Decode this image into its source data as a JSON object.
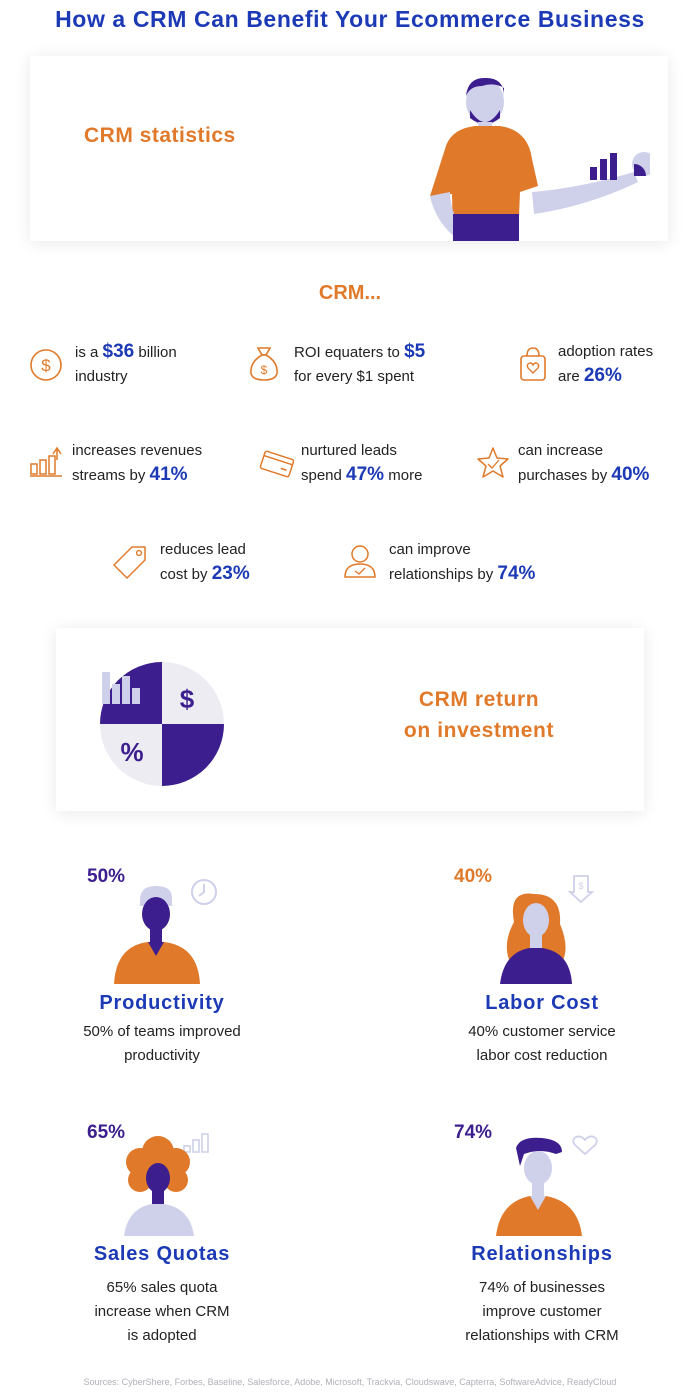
{
  "title": "How a CRM Can Benefit Your Ecommerce Business",
  "hero": {
    "label": "CRM statistics"
  },
  "crm_heading": "CRM...",
  "stats": [
    {
      "pre": "is a ",
      "value": "$36",
      "post": " billion",
      "line2": "industry",
      "icon": "dollar-coin-icon"
    },
    {
      "pre": "ROI equaters to ",
      "value": "$5",
      "post": "",
      "line2": "for every $1 spent",
      "icon": "money-bag-icon"
    },
    {
      "pre": "adoption rates",
      "value": "26%",
      "line2pre": "are ",
      "icon": "shopping-bag-heart-icon"
    },
    {
      "line1": "increases revenues",
      "line2pre": "streams by ",
      "value": "41%",
      "icon": "growth-chart-icon"
    },
    {
      "line1": "nurtured leads",
      "line2pre": "spend ",
      "value": "47%",
      "line2post": " more",
      "icon": "credit-card-icon"
    },
    {
      "line1": "can increase",
      "line2pre": "purchases by ",
      "value": "40%",
      "icon": "star-badge-icon"
    },
    {
      "line1": "reduces lead",
      "line2pre": "cost by ",
      "value": "23%",
      "icon": "price-tag-icon"
    },
    {
      "line1": "can improve",
      "line2pre": "relationships by ",
      "value": "74%",
      "icon": "user-check-icon"
    }
  ],
  "roi": {
    "line1": "CRM return",
    "line2": "on investment"
  },
  "benefits": [
    {
      "pct": "50%",
      "heading": "Productivity",
      "desc1": "50% of teams improved",
      "desc2": "productivity",
      "desc3": ""
    },
    {
      "pct": "40%",
      "heading": "Labor Cost",
      "desc1": "40% customer service",
      "desc2": "labor cost reduction",
      "desc3": ""
    },
    {
      "pct": "65%",
      "heading": "Sales Quotas",
      "desc1": "65% sales quota",
      "desc2": "increase when CRM",
      "desc3": "is adopted"
    },
    {
      "pct": "74%",
      "heading": "Relationships",
      "desc1": "74% of businesses",
      "desc2": "improve customer",
      "desc3": "relationships with CRM"
    }
  ],
  "sources": "Sources: CyberShere, Forbes, Baseline, Salesforce, Adobe, Microsoft, Trackvia, Cloudswave, Capterra, SoftwareAdvice, ReadyCloud",
  "colors": {
    "orange": "#e07a2a",
    "blue": "#1d3ab6",
    "purple": "#3d1e8f",
    "lavender": "#cfd0ea"
  }
}
